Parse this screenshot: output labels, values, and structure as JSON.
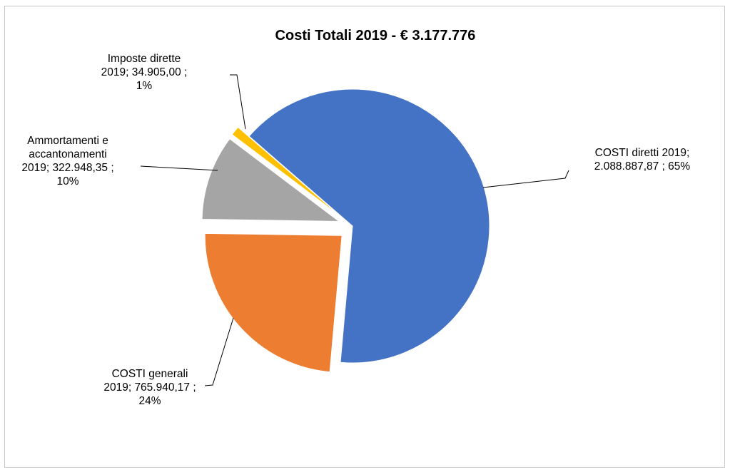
{
  "chart_data": {
    "type": "pie",
    "title": "Costi Totali 2019 -  € 3.177.776",
    "slices": [
      {
        "label_lines": [
          "COSTI diretti 2019;",
          "2.088.887,87 ; 65%"
        ],
        "value": 2088887.87,
        "percent": 65,
        "color": "#4472C4",
        "exploded": false
      },
      {
        "label_lines": [
          "COSTI generali",
          "2019; 765.940,17 ;",
          "24%"
        ],
        "value": 765940.17,
        "percent": 24,
        "color": "#ED7D31",
        "exploded": true
      },
      {
        "label_lines": [
          "Ammortamenti e",
          "accantonamenti",
          "2019; 322.948,35 ;",
          "10%"
        ],
        "value": 322948.35,
        "percent": 10,
        "color": "#A5A5A5",
        "exploded": true
      },
      {
        "label_lines": [
          "Imposte dirette",
          "2019; 34.905,00 ;",
          "1%"
        ],
        "value": 34905.0,
        "percent": 1,
        "color": "#FFC000",
        "exploded": true
      }
    ]
  }
}
